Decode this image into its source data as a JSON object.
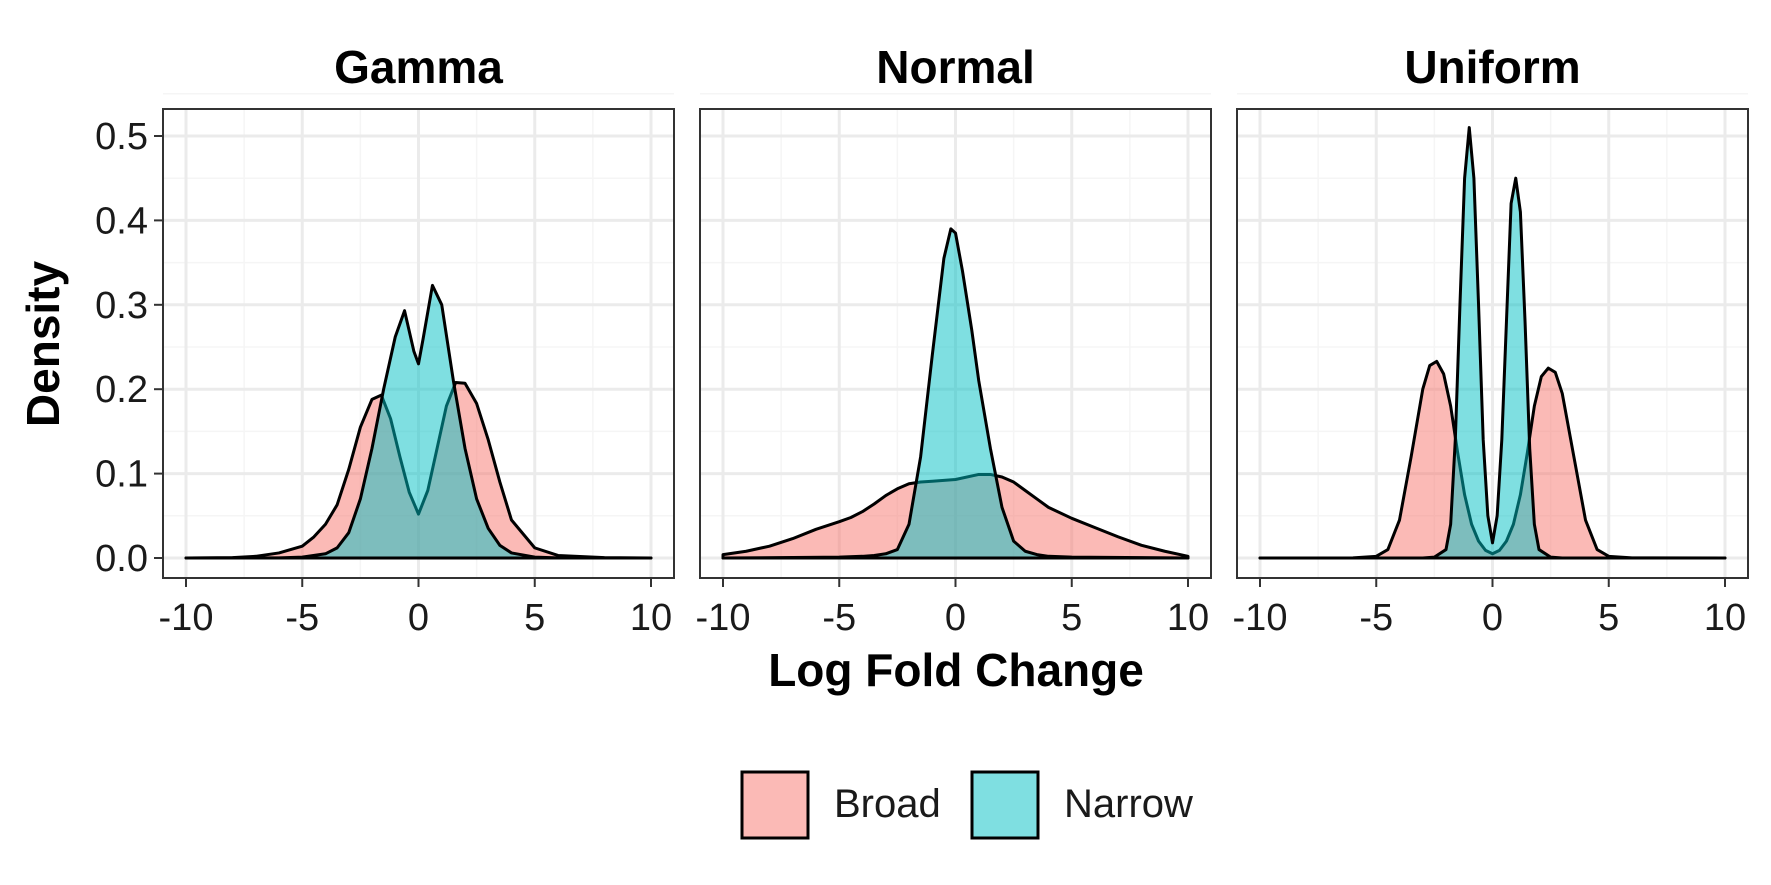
{
  "colors": {
    "broad": "#F8766D",
    "narrow": "#00BFC4",
    "grid_major": "#EBEBEB",
    "grid_minor": "#F5F5F5",
    "panel_border": "#333333",
    "curve_outline": "#000000"
  },
  "chart_data": {
    "type": "area",
    "subtype": "faceted density plot",
    "xlabel": "Log Fold Change",
    "ylabel": "Density",
    "xlim": [
      -10,
      10
    ],
    "ylim": [
      0,
      0.5
    ],
    "x_ticks": [
      -10,
      -5,
      0,
      5,
      10
    ],
    "y_ticks": [
      0.0,
      0.1,
      0.2,
      0.3,
      0.4,
      0.5
    ],
    "x_tick_labels": [
      "-10",
      "-5",
      "0",
      "5",
      "10"
    ],
    "y_tick_labels": [
      "0.0",
      "0.1",
      "0.2",
      "0.3",
      "0.4",
      "0.5"
    ],
    "grid": true,
    "fill_opacity": 0.5,
    "legend": {
      "position": "bottom",
      "entries": [
        "Broad",
        "Narrow"
      ]
    },
    "facets": [
      {
        "title": "Gamma",
        "series": [
          {
            "name": "Broad",
            "x": [
              -10,
              -8,
              -7,
              -6,
              -5,
              -4.5,
              -4,
              -3.5,
              -3,
              -2.5,
              -2,
              -1.6,
              -1.2,
              -0.8,
              -0.4,
              0,
              0.4,
              0.8,
              1.2,
              1.6,
              2,
              2.5,
              3,
              3.5,
              4,
              5,
              6,
              8,
              10
            ],
            "y": [
              0,
              0.0005,
              0.002,
              0.006,
              0.014,
              0.025,
              0.04,
              0.063,
              0.105,
              0.155,
              0.188,
              0.193,
              0.165,
              0.12,
              0.078,
              0.052,
              0.08,
              0.13,
              0.18,
              0.208,
              0.207,
              0.183,
              0.14,
              0.09,
              0.045,
              0.012,
              0.003,
              0.0005,
              0
            ]
          },
          {
            "name": "Narrow",
            "x": [
              -10,
              -6,
              -5,
              -4,
              -3.5,
              -3,
              -2.5,
              -2,
              -1.5,
              -1,
              -0.6,
              -0.2,
              0,
              0.2,
              0.6,
              1,
              1.5,
              2,
              2.5,
              3,
              3.5,
              4,
              5,
              6,
              10
            ],
            "y": [
              0,
              0.0002,
              0.001,
              0.005,
              0.012,
              0.03,
              0.07,
              0.13,
              0.2,
              0.262,
              0.293,
              0.245,
              0.23,
              0.26,
              0.323,
              0.3,
              0.21,
              0.13,
              0.07,
              0.035,
              0.015,
              0.006,
              0.001,
              0.0002,
              0
            ]
          }
        ]
      },
      {
        "title": "Normal",
        "series": [
          {
            "name": "Broad",
            "x": [
              -10,
              -9,
              -8,
              -7,
              -6,
              -5,
              -4.5,
              -4,
              -3.5,
              -3,
              -2.5,
              -2,
              -1.5,
              -1,
              0,
              1,
              1.5,
              2,
              2.5,
              3,
              3.5,
              4,
              5,
              6,
              7,
              8,
              9,
              10
            ],
            "y": [
              0.004,
              0.008,
              0.014,
              0.023,
              0.034,
              0.043,
              0.048,
              0.055,
              0.064,
              0.074,
              0.082,
              0.088,
              0.09,
              0.091,
              0.093,
              0.099,
              0.099,
              0.096,
              0.09,
              0.08,
              0.07,
              0.06,
              0.047,
              0.036,
              0.025,
              0.015,
              0.008,
              0.002
            ]
          },
          {
            "name": "Narrow",
            "x": [
              -10,
              -5,
              -4,
              -3.5,
              -3,
              -2.5,
              -2,
              -1.5,
              -1,
              -0.5,
              -0.2,
              0,
              0.3,
              0.7,
              1,
              1.5,
              2,
              2.5,
              3,
              3.5,
              4,
              5,
              10
            ],
            "y": [
              0,
              0.001,
              0.002,
              0.003,
              0.005,
              0.01,
              0.04,
              0.12,
              0.24,
              0.355,
              0.39,
              0.385,
              0.34,
              0.27,
              0.21,
              0.13,
              0.06,
              0.02,
              0.008,
              0.004,
              0.002,
              0.001,
              0
            ]
          }
        ]
      },
      {
        "title": "Uniform",
        "series": [
          {
            "name": "Broad",
            "x": [
              -10,
              -6,
              -5,
              -4.5,
              -4,
              -3.5,
              -3,
              -2.7,
              -2.4,
              -2.1,
              -1.8,
              -1.5,
              -1.2,
              -0.9,
              -0.6,
              -0.3,
              0,
              0.3,
              0.6,
              0.9,
              1.2,
              1.5,
              1.8,
              2.1,
              2.4,
              2.7,
              3,
              3.5,
              4,
              4.5,
              5,
              6,
              10
            ],
            "y": [
              0,
              0.0002,
              0.002,
              0.01,
              0.045,
              0.12,
              0.2,
              0.228,
              0.233,
              0.218,
              0.18,
              0.125,
              0.075,
              0.04,
              0.02,
              0.009,
              0.005,
              0.009,
              0.02,
              0.04,
              0.075,
              0.125,
              0.18,
              0.215,
              0.225,
              0.22,
              0.195,
              0.12,
              0.045,
              0.01,
              0.002,
              0.0002,
              0
            ]
          },
          {
            "name": "Narrow",
            "x": [
              -10,
              -3,
              -2.5,
              -2,
              -1.8,
              -1.6,
              -1.4,
              -1.2,
              -1,
              -0.8,
              -0.6,
              -0.4,
              -0.2,
              0,
              0.2,
              0.4,
              0.6,
              0.8,
              1,
              1.2,
              1.4,
              1.6,
              1.8,
              2,
              2.5,
              3,
              10
            ],
            "y": [
              0,
              0,
              0.001,
              0.01,
              0.04,
              0.14,
              0.3,
              0.45,
              0.51,
              0.45,
              0.3,
              0.14,
              0.05,
              0.018,
              0.05,
              0.14,
              0.28,
              0.42,
              0.45,
              0.41,
              0.28,
              0.13,
              0.04,
              0.01,
              0.001,
              0,
              0
            ]
          }
        ]
      }
    ]
  }
}
